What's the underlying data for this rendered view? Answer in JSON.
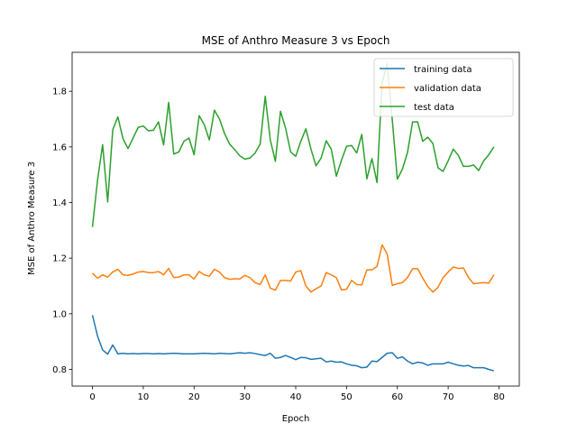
{
  "chart_data": {
    "type": "line",
    "title": "MSE of Anthro Measure 3 vs Epoch",
    "xlabel": "Epoch",
    "ylabel": "MSE of Anthro Measure 3",
    "xlim": [
      -4,
      84
    ],
    "ylim": [
      0.74,
      1.94
    ],
    "xticks": [
      0,
      10,
      20,
      30,
      40,
      50,
      60,
      70,
      80
    ],
    "yticks": [
      0.8,
      1.0,
      1.2,
      1.4,
      1.6,
      1.8
    ],
    "legend_position": "top-right",
    "grid": false,
    "x": [
      0,
      1,
      2,
      3,
      4,
      5,
      6,
      7,
      8,
      9,
      10,
      11,
      12,
      13,
      14,
      15,
      16,
      17,
      18,
      19,
      20,
      21,
      22,
      23,
      24,
      25,
      26,
      27,
      28,
      29,
      30,
      31,
      32,
      33,
      34,
      35,
      36,
      37,
      38,
      39,
      40,
      41,
      42,
      43,
      44,
      45,
      46,
      47,
      48,
      49,
      50,
      51,
      52,
      53,
      54,
      55,
      56,
      57,
      58,
      59,
      60,
      61,
      62,
      63,
      64,
      65,
      66,
      67,
      68,
      69,
      70,
      71,
      72,
      73,
      74,
      75,
      76,
      77,
      78,
      79
    ],
    "series": [
      {
        "name": "training data",
        "color": "#1f77b4",
        "values": [
          0.995,
          0.92,
          0.87,
          0.855,
          0.888,
          0.856,
          0.858,
          0.856,
          0.857,
          0.856,
          0.857,
          0.857,
          0.856,
          0.857,
          0.856,
          0.857,
          0.858,
          0.857,
          0.856,
          0.856,
          0.856,
          0.857,
          0.858,
          0.857,
          0.856,
          0.858,
          0.857,
          0.856,
          0.858,
          0.86,
          0.858,
          0.86,
          0.857,
          0.853,
          0.85,
          0.858,
          0.84,
          0.843,
          0.85,
          0.843,
          0.835,
          0.843,
          0.842,
          0.836,
          0.838,
          0.84,
          0.827,
          0.83,
          0.826,
          0.827,
          0.82,
          0.815,
          0.813,
          0.806,
          0.808,
          0.83,
          0.828,
          0.843,
          0.858,
          0.86,
          0.84,
          0.845,
          0.83,
          0.82,
          0.826,
          0.823,
          0.815,
          0.82,
          0.82,
          0.82,
          0.826,
          0.82,
          0.815,
          0.812,
          0.814,
          0.806,
          0.806,
          0.806,
          0.8,
          0.795
        ]
      },
      {
        "name": "validation data",
        "color": "#ff7f0e",
        "values": [
          1.146,
          1.128,
          1.14,
          1.132,
          1.15,
          1.16,
          1.14,
          1.138,
          1.143,
          1.15,
          1.152,
          1.148,
          1.148,
          1.152,
          1.14,
          1.163,
          1.13,
          1.132,
          1.14,
          1.14,
          1.125,
          1.152,
          1.14,
          1.135,
          1.16,
          1.15,
          1.13,
          1.124,
          1.126,
          1.125,
          1.138,
          1.13,
          1.112,
          1.105,
          1.14,
          1.092,
          1.085,
          1.12,
          1.12,
          1.118,
          1.15,
          1.155,
          1.1,
          1.078,
          1.09,
          1.1,
          1.148,
          1.14,
          1.13,
          1.086,
          1.088,
          1.12,
          1.105,
          1.104,
          1.158,
          1.158,
          1.17,
          1.248,
          1.215,
          1.102,
          1.108,
          1.112,
          1.13,
          1.162,
          1.162,
          1.128,
          1.098,
          1.078,
          1.095,
          1.13,
          1.15,
          1.168,
          1.163,
          1.165,
          1.13,
          1.108,
          1.11,
          1.112,
          1.11,
          1.14
        ]
      },
      {
        "name": "test data",
        "color": "#2ca02c",
        "values": [
          1.312,
          1.48,
          1.608,
          1.402,
          1.662,
          1.708,
          1.63,
          1.594,
          1.632,
          1.67,
          1.675,
          1.658,
          1.66,
          1.69,
          1.607,
          1.76,
          1.574,
          1.582,
          1.62,
          1.632,
          1.572,
          1.712,
          1.68,
          1.625,
          1.732,
          1.7,
          1.648,
          1.61,
          1.59,
          1.568,
          1.556,
          1.56,
          1.578,
          1.61,
          1.782,
          1.625,
          1.548,
          1.728,
          1.668,
          1.582,
          1.566,
          1.62,
          1.665,
          1.592,
          1.532,
          1.56,
          1.622,
          1.592,
          1.495,
          1.552,
          1.602,
          1.605,
          1.578,
          1.645,
          1.485,
          1.558,
          1.472,
          1.83,
          1.9,
          1.698,
          1.484,
          1.52,
          1.58,
          1.69,
          1.69,
          1.62,
          1.635,
          1.612,
          1.525,
          1.512,
          1.55,
          1.592,
          1.57,
          1.53,
          1.53,
          1.535,
          1.515,
          1.55,
          1.572,
          1.6
        ]
      }
    ]
  }
}
